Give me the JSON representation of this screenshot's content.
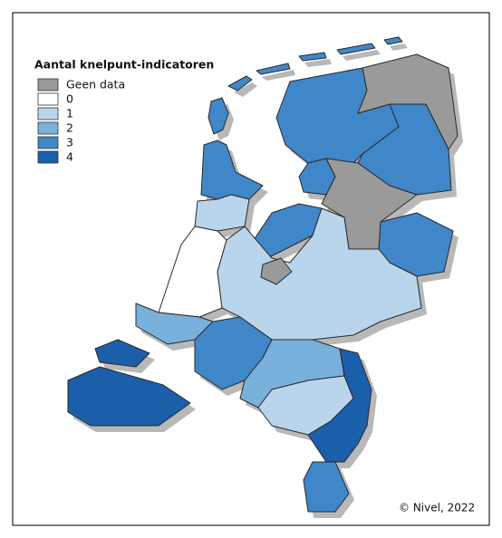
{
  "legend": {
    "title": "Aantal knelpunt-indicatoren",
    "items": [
      {
        "label": "Geen data",
        "color": "#9a9a9a"
      },
      {
        "label": "0",
        "color": "#ffffff"
      },
      {
        "label": "1",
        "color": "#b9d5eb"
      },
      {
        "label": "2",
        "color": "#78b1dc"
      },
      {
        "label": "3",
        "color": "#3f87c9"
      },
      {
        "label": "4",
        "color": "#1b5ea9"
      }
    ]
  },
  "credit": "© Nivel, 2022"
}
